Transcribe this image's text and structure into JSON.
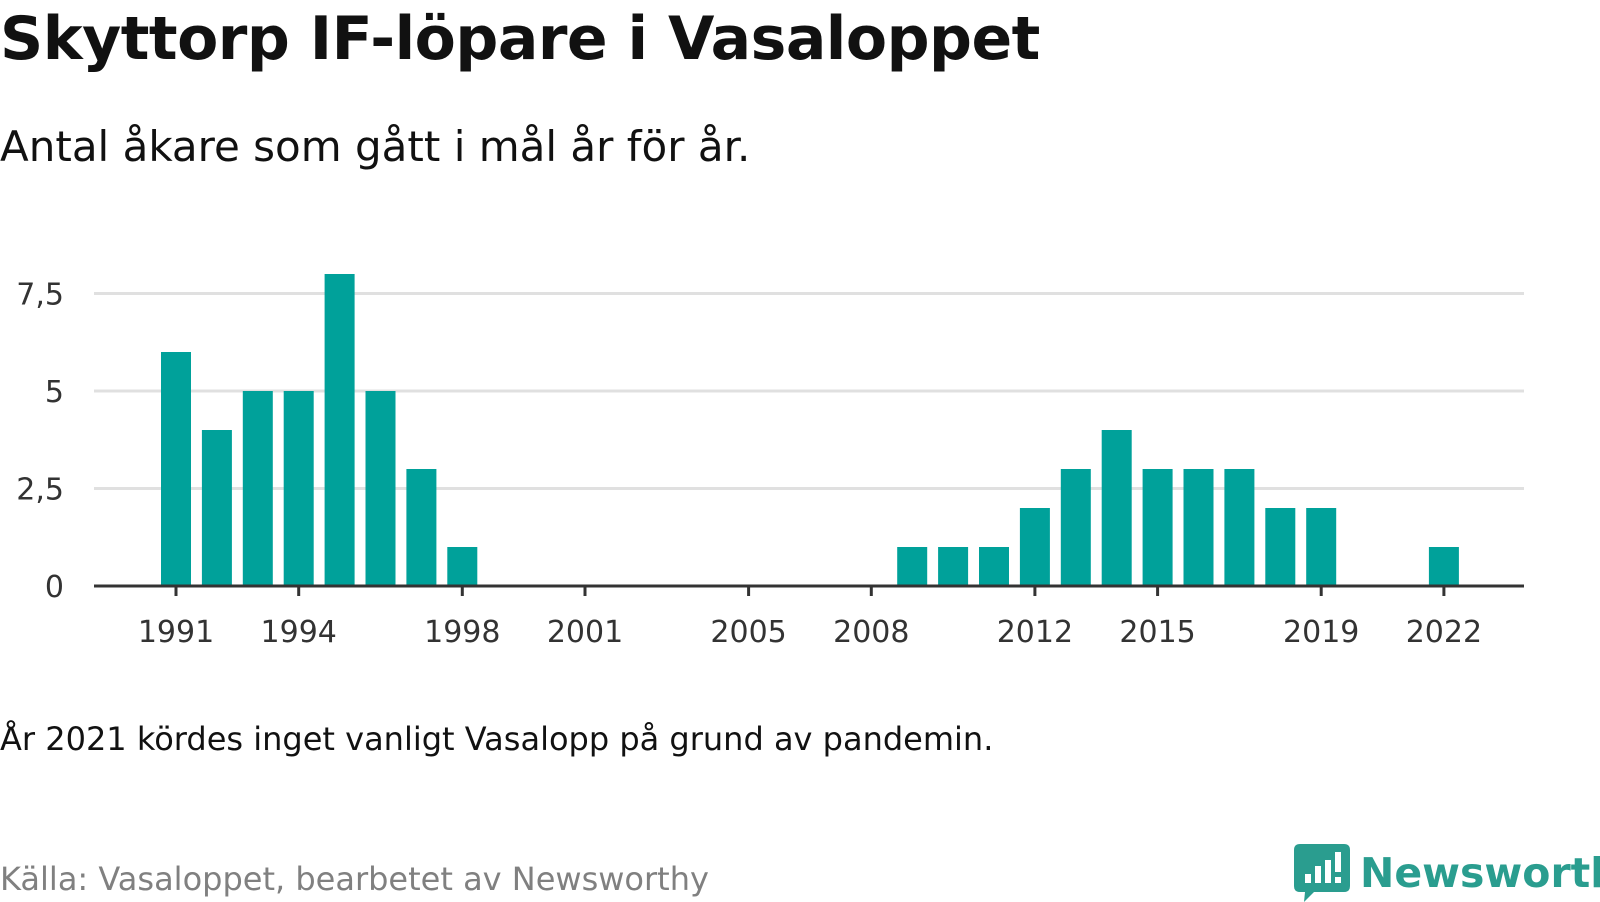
{
  "title": "Skyttorp IF-löpare i Vasaloppet",
  "subtitle": "Antal åkare som gått i mål år för år.",
  "note": "År 2021 kördes inget vanligt Vasalopp på grund av pandemin.",
  "source": "Källa: Vasaloppet, bearbetet av Newsworthy",
  "brand": {
    "name": "Newsworthy",
    "icon": "newsworthy-logo-icon",
    "color": "#2a9d8f"
  },
  "chart_data": {
    "type": "bar",
    "x": [
      1991,
      1992,
      1993,
      1994,
      1995,
      1996,
      1997,
      1998,
      1999,
      2000,
      2001,
      2002,
      2003,
      2004,
      2005,
      2006,
      2007,
      2008,
      2009,
      2010,
      2011,
      2012,
      2013,
      2014,
      2015,
      2016,
      2017,
      2018,
      2019,
      2020,
      2021,
      2022
    ],
    "values": [
      6,
      4,
      5,
      5,
      8,
      5,
      3,
      1,
      0,
      0,
      0,
      0,
      0,
      0,
      0,
      0,
      0,
      0,
      1,
      1,
      1,
      2,
      3,
      4,
      3,
      3,
      3,
      2,
      2,
      0,
      0,
      1
    ],
    "x_tick_labels": [
      "1991",
      "1994",
      "1998",
      "2001",
      "2005",
      "2008",
      "2012",
      "2015",
      "2019",
      "2022"
    ],
    "y_ticks": [
      0,
      2.5,
      5,
      7.5
    ],
    "y_tick_labels": [
      "0",
      "2,5",
      "5",
      "7,5"
    ],
    "ylim": [
      0,
      8
    ],
    "xlabel": "",
    "ylabel": "",
    "grid": true,
    "bar_color": "#00a19a"
  }
}
